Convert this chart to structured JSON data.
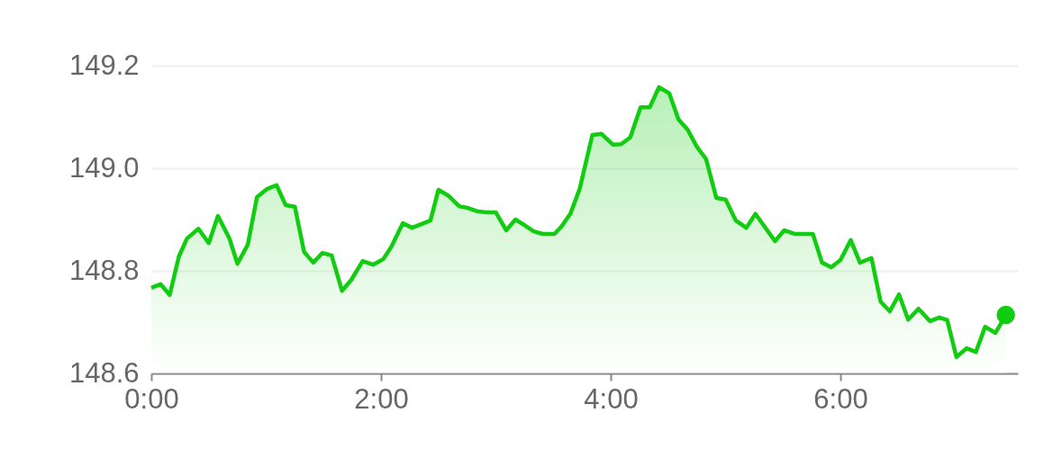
{
  "chart_data": {
    "type": "area",
    "x": [
      0,
      0.08,
      0.16,
      0.24,
      0.31,
      0.41,
      0.5,
      0.58,
      0.68,
      0.75,
      0.84,
      0.92,
      1.01,
      1.09,
      1.17,
      1.25,
      1.33,
      1.41,
      1.49,
      1.57,
      1.66,
      1.74,
      1.84,
      1.93,
      2.02,
      2.09,
      2.19,
      2.27,
      2.43,
      2.5,
      2.59,
      2.68,
      2.75,
      2.84,
      2.92,
      3.0,
      3.09,
      3.17,
      3.25,
      3.33,
      3.41,
      3.51,
      3.57,
      3.65,
      3.73,
      3.84,
      3.92,
      4.02,
      4.09,
      4.17,
      4.26,
      4.34,
      4.42,
      4.51,
      4.59,
      4.67,
      4.75,
      4.83,
      4.92,
      5.0,
      5.09,
      5.18,
      5.26,
      5.43,
      5.51,
      5.6,
      5.76,
      5.84,
      5.92,
      6.0,
      6.09,
      6.17,
      6.27,
      6.35,
      6.43,
      6.51,
      6.59,
      6.68,
      6.78,
      6.86,
      6.93,
      7.01,
      7.1,
      7.18,
      7.26,
      7.35,
      7.44
    ],
    "series": [
      {
        "color": "#11cc11",
        "values": [
          148.767,
          148.774,
          148.753,
          148.828,
          148.863,
          148.882,
          148.854,
          148.907,
          148.863,
          148.814,
          148.851,
          148.944,
          148.96,
          148.967,
          148.928,
          148.925,
          148.837,
          148.816,
          148.835,
          148.83,
          148.761,
          148.782,
          148.819,
          148.812,
          148.823,
          148.847,
          148.893,
          148.884,
          148.898,
          148.958,
          148.946,
          148.926,
          148.923,
          148.916,
          148.914,
          148.914,
          148.879,
          148.9,
          148.889,
          148.877,
          148.872,
          148.872,
          148.886,
          148.912,
          148.96,
          149.065,
          149.067,
          149.046,
          149.047,
          149.06,
          149.119,
          149.119,
          149.158,
          149.146,
          149.095,
          149.075,
          149.042,
          149.018,
          148.942,
          148.939,
          148.898,
          148.884,
          148.911,
          148.858,
          148.879,
          148.872,
          148.872,
          148.816,
          148.807,
          148.821,
          148.86,
          148.816,
          148.825,
          148.74,
          148.721,
          148.754,
          148.705,
          148.726,
          148.702,
          148.709,
          148.704,
          148.632,
          148.649,
          148.642,
          148.691,
          148.679,
          148.714
        ]
      },
      {
        "type": "scatter",
        "marker": "circle",
        "color": "#11cc11",
        "x": [
          7.44
        ],
        "values": [
          148.714
        ]
      }
    ],
    "xlim": [
      0,
      7.545
    ],
    "xticks": [
      {
        "value": 0,
        "label": "0:00"
      },
      {
        "value": 2,
        "label": "2:00"
      },
      {
        "value": 4,
        "label": "4:00"
      },
      {
        "value": 6,
        "label": "6:00"
      }
    ],
    "ylim": [
      148.6,
      149.2
    ],
    "yticks": [
      148.6,
      148.8,
      {
        "value": 149,
        "label": "149.0"
      },
      149.2
    ],
    "grid": "y",
    "marker": "none",
    "line_style": "solid"
  }
}
